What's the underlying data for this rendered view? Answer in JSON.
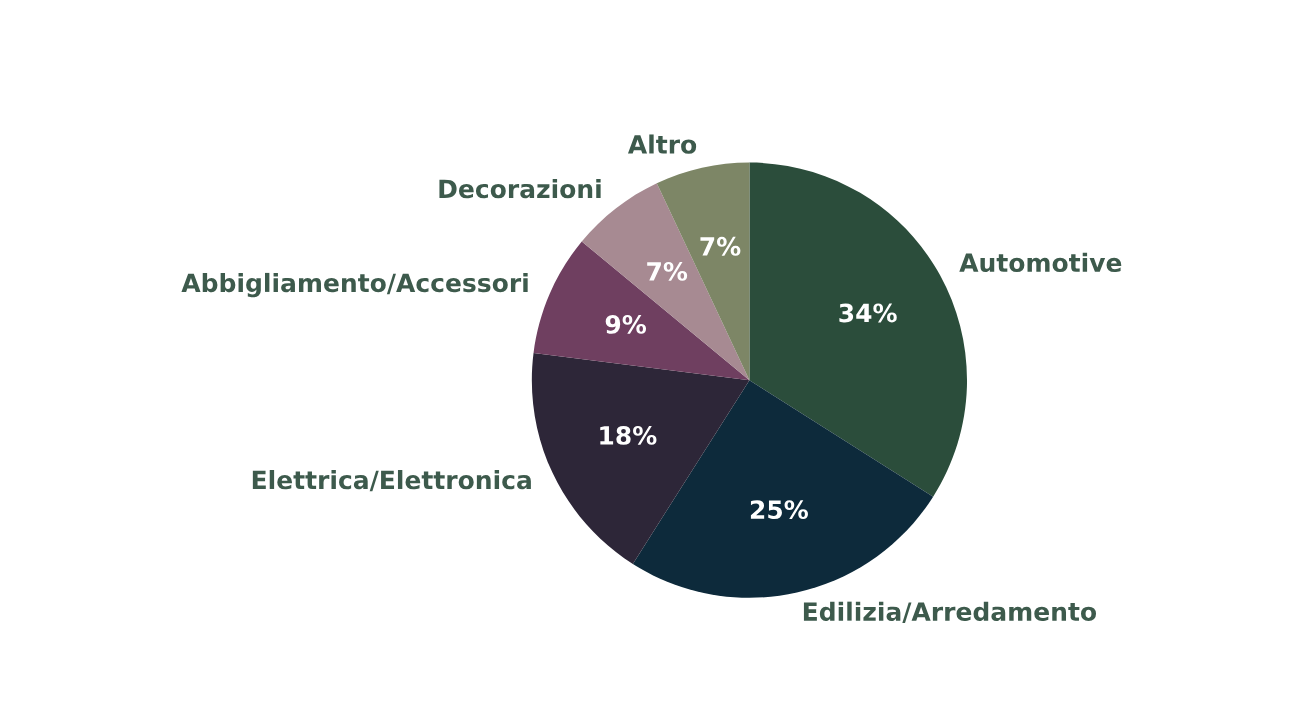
{
  "chart_data": {
    "type": "pie",
    "categories": [
      "Automotive",
      "Edilizia/Arredamento",
      "Elettrica/Elettronica",
      "Abbigliamento/Accessori",
      "Decorazioni",
      "Altro"
    ],
    "values": [
      34,
      25,
      18,
      9,
      7,
      7
    ],
    "colors": [
      "#2b4d3b",
      "#0d2a3b",
      "#2d2638",
      "#6f3f60",
      "#a78a92",
      "#7d8666"
    ],
    "value_labels": [
      "34%",
      "25%",
      "18%",
      "9%",
      "7%",
      "7%"
    ]
  }
}
